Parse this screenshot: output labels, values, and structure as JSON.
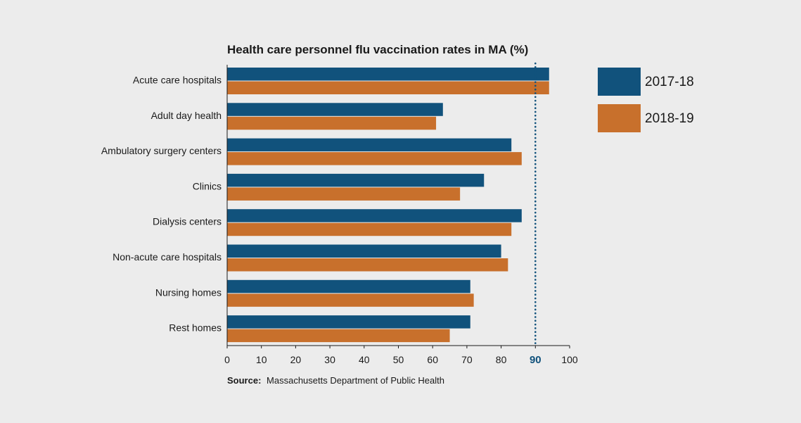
{
  "chart_data": {
    "type": "bar",
    "orientation": "horizontal",
    "title": "Health care personnel flu vaccination rates in MA (%)",
    "categories": [
      "Acute care hospitals",
      "Adult day health",
      "Ambulatory surgery centers",
      "Clinics",
      "Dialysis centers",
      "Non-acute care hospitals",
      "Nursing homes",
      "Rest homes"
    ],
    "series": [
      {
        "name": "2017-18",
        "color": "#11527c",
        "values": [
          94,
          63,
          83,
          75,
          86,
          80,
          71,
          71
        ]
      },
      {
        "name": "2018-19",
        "color": "#c8702c",
        "values": [
          94,
          61,
          86,
          68,
          83,
          82,
          72,
          65
        ]
      }
    ],
    "xlim": [
      0,
      100
    ],
    "xticks": [
      0,
      10,
      20,
      30,
      40,
      50,
      60,
      70,
      80,
      90,
      100
    ],
    "reference_line": {
      "value": 90,
      "label": "90",
      "style": "dotted",
      "color": "#11527c"
    },
    "legend_position": "right",
    "grid": false,
    "source_label": "Source:",
    "source_text": "Massachusetts Department of Public Health"
  }
}
